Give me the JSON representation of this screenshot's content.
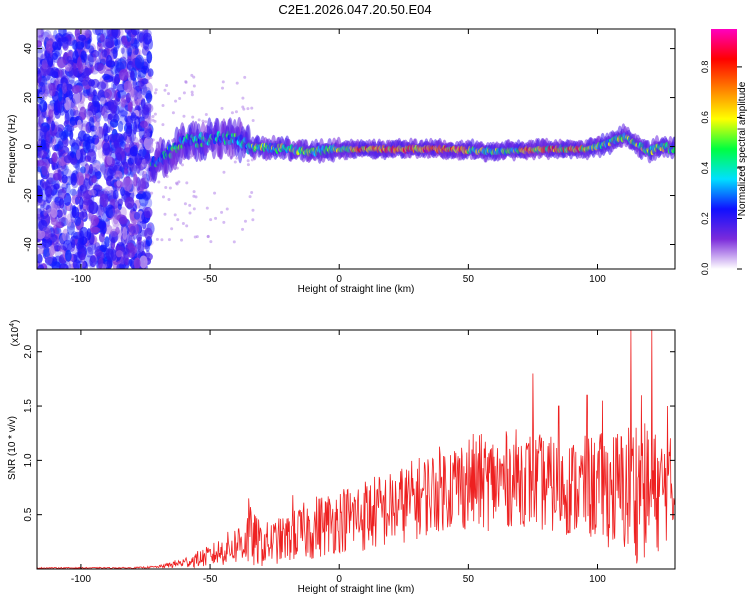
{
  "figure": {
    "title": "C2E1.2026.047.20.50.E04"
  },
  "colorbar": {
    "label": "Normalized spectral amplitude",
    "range": [
      0,
      0.95
    ],
    "ticks": [
      "0.0",
      "0.2",
      "0.4",
      "0.6",
      "0.8"
    ],
    "tick_values": [
      0,
      0.2,
      0.4,
      0.6,
      0.8
    ],
    "colormap": [
      "#ffffff",
      "#7b2bdb",
      "#1010ff",
      "#00e0ff",
      "#00ff40",
      "#ffff00",
      "#ff8000",
      "#ff0000",
      "#ff00c0"
    ]
  },
  "chart_data": [
    {
      "type": "heatmap",
      "title": "",
      "xlabel": "Height of straight line (km)",
      "ylabel": "Frequency (Hz)",
      "xlim": [
        -117,
        130
      ],
      "ylim": [
        -50,
        48
      ],
      "xticks": [
        "-100",
        "-50",
        "0",
        "50",
        "100"
      ],
      "xtick_values": [
        -100,
        -50,
        0,
        50,
        100
      ],
      "yticks": [
        "40",
        "20",
        "0",
        "-20",
        "-40"
      ],
      "ytick_values": [
        40,
        20,
        0,
        -20,
        -40
      ],
      "description_series": {
        "noise_region_km": [
          -117,
          -73
        ],
        "ridge_center_hz": {
          "x": [
            -73,
            -68,
            -60,
            -50,
            -40,
            -35,
            -20,
            -10,
            0,
            20,
            40,
            60,
            80,
            95,
            100,
            105,
            110,
            115,
            120,
            125,
            130
          ],
          "y": [
            -8,
            -4,
            2,
            3,
            4,
            0,
            -1,
            -2,
            -1,
            -1,
            -1,
            -2,
            -1,
            -1,
            0,
            2,
            4,
            1,
            -2,
            0,
            -1
          ]
        }
      }
    },
    {
      "type": "line",
      "title": "",
      "xlabel": "Height of straight line (km)",
      "ylabel": "SNR (10 * v/v)",
      "y_multiplier": "(x10",
      "y_multiplier_exp": "4",
      "y_multiplier_close": ")",
      "xlim": [
        -117,
        130
      ],
      "ylim": [
        0,
        2.2
      ],
      "xticks": [
        "-100",
        "-50",
        "0",
        "50",
        "100"
      ],
      "xtick_values": [
        -100,
        -50,
        0,
        50,
        100
      ],
      "yticks": [
        "0.5",
        "1.0",
        "1.5",
        "2.0"
      ],
      "ytick_values": [
        0.5,
        1.0,
        1.5,
        2.0
      ],
      "series": [
        {
          "name": "SNR",
          "color": "#ee2020",
          "envelope_x": [
            -117,
            -100,
            -80,
            -70,
            -60,
            -50,
            -40,
            -35,
            -30,
            -20,
            -10,
            0,
            10,
            20,
            30,
            40,
            50,
            60,
            70,
            80,
            90,
            100,
            110,
            115,
            120,
            125,
            130
          ],
          "envelope_mean": [
            0.01,
            0.01,
            0.01,
            0.02,
            0.06,
            0.12,
            0.22,
            0.3,
            0.22,
            0.28,
            0.38,
            0.45,
            0.5,
            0.55,
            0.65,
            0.75,
            0.8,
            0.8,
            0.85,
            0.78,
            0.75,
            0.75,
            0.72,
            0.75,
            0.7,
            0.72,
            0.7
          ],
          "envelope_amp": [
            0.005,
            0.005,
            0.006,
            0.01,
            0.05,
            0.1,
            0.18,
            0.3,
            0.2,
            0.22,
            0.3,
            0.3,
            0.35,
            0.35,
            0.38,
            0.4,
            0.45,
            0.45,
            0.45,
            0.45,
            0.45,
            0.5,
            0.6,
            0.7,
            0.6,
            0.55,
            0.5
          ],
          "spikes": [
            [
              -35,
              0.65
            ],
            [
              -18,
              0.68
            ],
            [
              75,
              1.8
            ],
            [
              85,
              1.5
            ],
            [
              96,
              1.6
            ],
            [
              102,
              1.55
            ],
            [
              113,
              2.2
            ],
            [
              117,
              1.6
            ],
            [
              121,
              2.2
            ],
            [
              127,
              1.5
            ]
          ]
        }
      ]
    }
  ]
}
